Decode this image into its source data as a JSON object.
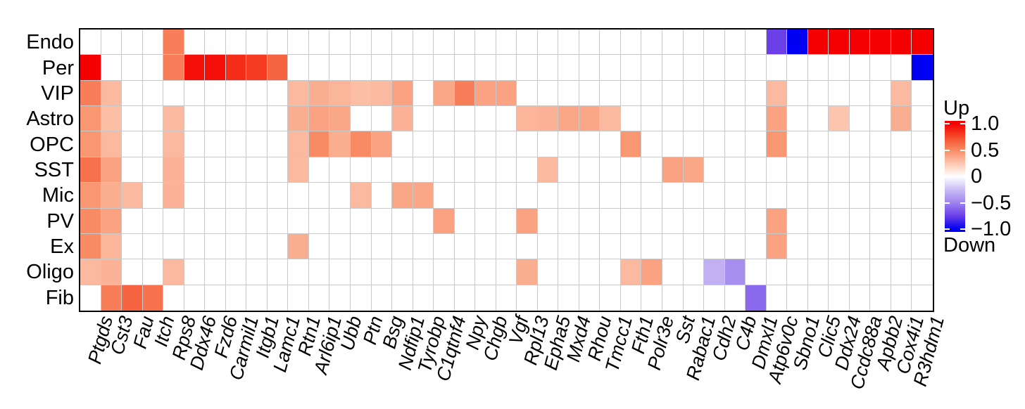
{
  "chart_data": {
    "type": "heatmap",
    "rows": [
      "Endo",
      "Per",
      "VIP",
      "Astro",
      "OPC",
      "SST",
      "Mic",
      "PV",
      "Ex",
      "Oligo",
      "Fib"
    ],
    "columns": [
      "Ptgds",
      "Cst3",
      "Fau",
      "Itch",
      "Rps8",
      "Ddx46",
      "Fzd6",
      "Carmil1",
      "Itgb1",
      "Lamc1",
      "Rtn1",
      "Arl6ip1",
      "Ubb",
      "Ptn",
      "Bsg",
      "Ndfip1",
      "Tyrobp",
      "C1qtnf4",
      "Npy",
      "Chgb",
      "Vgf",
      "Rpl13",
      "Epha5",
      "Mxd4",
      "Rhou",
      "Tmcc1",
      "Fth1",
      "Polr3e",
      "Sst",
      "Rabac1",
      "Cdh2",
      "C4b",
      "Dmxl1",
      "Atp6v0c",
      "Sbno1",
      "Clic5",
      "Ddx24",
      "Ccdc88a",
      "Apbb2",
      "Cox4i1",
      "R3hdm1"
    ],
    "values": [
      [
        0,
        0,
        0,
        0,
        0.55,
        0,
        0,
        0,
        0,
        0,
        0,
        0,
        0,
        0,
        0,
        0,
        0,
        0,
        0,
        0,
        0,
        0,
        0,
        0,
        0,
        0,
        0,
        0,
        0,
        0,
        0,
        0,
        0,
        -0.75,
        -1,
        1,
        1,
        1,
        1,
        1,
        1
      ],
      [
        1,
        0,
        0,
        0,
        0.55,
        0.95,
        0.95,
        0.85,
        0.8,
        0.65,
        0,
        0,
        0,
        0,
        0,
        0,
        0,
        0,
        0,
        0,
        0,
        0,
        0,
        0,
        0,
        0,
        0,
        0,
        0,
        0,
        0,
        0,
        0,
        0,
        0,
        0,
        0,
        0,
        0,
        0,
        -1
      ],
      [
        0.55,
        0.3,
        0,
        0,
        0,
        0,
        0,
        0,
        0,
        0,
        0.3,
        0.35,
        0.32,
        0.28,
        0.3,
        0.4,
        0,
        0.38,
        0.55,
        0.4,
        0.4,
        0,
        0,
        0,
        0,
        0,
        0,
        0,
        0,
        0,
        0,
        0,
        0,
        0.3,
        0,
        0,
        0,
        0,
        0,
        0.3,
        0
      ],
      [
        0.45,
        0.28,
        0,
        0,
        0.3,
        0,
        0,
        0,
        0,
        0,
        0.35,
        0.4,
        0.38,
        0,
        0,
        0.33,
        0,
        0,
        0,
        0,
        0,
        0.32,
        0.33,
        0.38,
        0.38,
        0.3,
        0,
        0,
        0,
        0,
        0,
        0,
        0,
        0.4,
        0,
        0,
        0.25,
        0,
        0,
        0.35,
        0
      ],
      [
        0.45,
        0.3,
        0,
        0,
        0.3,
        0,
        0,
        0,
        0,
        0,
        0.3,
        0.5,
        0.35,
        0.5,
        0.4,
        0,
        0,
        0,
        0,
        0,
        0,
        0,
        0,
        0,
        0,
        0,
        0.45,
        0,
        0,
        0,
        0,
        0,
        0,
        0.45,
        0,
        0,
        0,
        0,
        0,
        0,
        0
      ],
      [
        0.6,
        0.4,
        0,
        0,
        0.33,
        0,
        0,
        0,
        0,
        0,
        0.3,
        0,
        0,
        0,
        0,
        0,
        0,
        0,
        0,
        0,
        0,
        0,
        0.3,
        0,
        0,
        0,
        0,
        0,
        0.4,
        0.38,
        0,
        0,
        0,
        0,
        0,
        0,
        0,
        0,
        0,
        0,
        0
      ],
      [
        0.45,
        0.35,
        0.3,
        0,
        0.33,
        0,
        0,
        0,
        0,
        0,
        0,
        0,
        0,
        0.3,
        0,
        0.38,
        0.38,
        0,
        0,
        0,
        0,
        0,
        0,
        0,
        0,
        0,
        0,
        0,
        0,
        0,
        0,
        0,
        0,
        0,
        0,
        0,
        0,
        0,
        0,
        0,
        0
      ],
      [
        0.5,
        0.4,
        0,
        0,
        0,
        0,
        0,
        0,
        0,
        0,
        0,
        0,
        0,
        0,
        0,
        0,
        0,
        0.4,
        0,
        0,
        0,
        0.4,
        0,
        0,
        0,
        0,
        0,
        0,
        0,
        0,
        0,
        0,
        0,
        0.4,
        0,
        0,
        0,
        0,
        0,
        0,
        0
      ],
      [
        0.5,
        0.32,
        0,
        0,
        0,
        0,
        0,
        0,
        0,
        0,
        0.35,
        0,
        0,
        0,
        0,
        0,
        0,
        0,
        0,
        0,
        0,
        0,
        0,
        0,
        0,
        0,
        0,
        0,
        0,
        0,
        0,
        0,
        0,
        0.4,
        0,
        0,
        0,
        0,
        0,
        0,
        0
      ],
      [
        0.3,
        0.33,
        0,
        0,
        0.3,
        0,
        0,
        0,
        0,
        0,
        0,
        0,
        0,
        0,
        0,
        0,
        0,
        0,
        0,
        0,
        0,
        0.35,
        0,
        0,
        0,
        0,
        0.3,
        0.4,
        0,
        0,
        -0.3,
        -0.45,
        0,
        0,
        0,
        0,
        0,
        0,
        0,
        0,
        0
      ],
      [
        0,
        0.55,
        0.65,
        0.6,
        0,
        0,
        0,
        0,
        0,
        0,
        0,
        0,
        0,
        0,
        0,
        0,
        0,
        0,
        0,
        0,
        0,
        0,
        0,
        0,
        0,
        0,
        0,
        0,
        0,
        0,
        0,
        0,
        -0.6,
        0,
        0,
        0,
        0,
        0,
        0,
        0,
        0
      ]
    ],
    "value_range": [
      -1,
      1
    ],
    "legend": {
      "title_top": "Up",
      "title_bottom": "Down",
      "tick_labels": [
        "1.0",
        "0.5",
        "0",
        "−0.5",
        "−1.0"
      ],
      "tick_values": [
        1,
        0.5,
        0,
        -0.5,
        -1
      ]
    },
    "colors": {
      "grid_line": "#c9c9c9",
      "plot_border": "#000000",
      "text": "#000000",
      "positive_anchors": [
        [
          0,
          "#ffffff"
        ],
        [
          0.25,
          "#fcc5ae"
        ],
        [
          0.5,
          "#f88b63"
        ],
        [
          0.75,
          "#f54a2b"
        ],
        [
          1,
          "#f40000"
        ]
      ],
      "negative_anchors": [
        [
          0,
          "#ffffff"
        ],
        [
          0.25,
          "#c9bdf4"
        ],
        [
          0.5,
          "#9f83ee"
        ],
        [
          0.75,
          "#6a3fe7"
        ],
        [
          1,
          "#0000f2"
        ]
      ]
    },
    "layout": {
      "grid": "on",
      "legend_position": "right",
      "x_label_angle": 75,
      "x_label_style": "italic"
    }
  }
}
